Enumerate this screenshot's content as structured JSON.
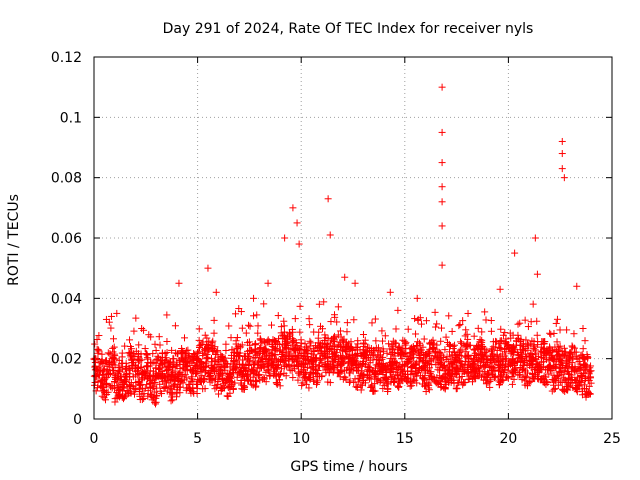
{
  "chart_data": {
    "type": "scatter",
    "title": "Day 291 of 2024, Rate Of TEC Index for receiver nyls",
    "xlabel": "GPS time / hours",
    "ylabel": "ROTI / TECUs",
    "xlim": [
      0,
      25
    ],
    "ylim": [
      0,
      0.12
    ],
    "xticks": [
      "0",
      "5",
      "10",
      "15",
      "20",
      "25"
    ],
    "yticks": [
      "0",
      "0.02",
      "0.04",
      "0.06",
      "0.08",
      "0.1",
      "0.12"
    ],
    "grid": true,
    "marker": "plus",
    "color": "#ff0000",
    "series": [
      {
        "x": [
          0.1,
          0.3,
          0.5,
          0.7,
          0.9,
          1.1,
          1.3,
          1.5,
          1.7,
          1.9,
          2.1,
          2.3,
          2.5,
          2.7,
          2.9,
          3.1,
          3.3,
          3.5,
          3.7,
          3.9,
          4.1,
          4.3,
          4.5,
          4.7,
          4.9,
          5.1,
          5.3,
          5.5,
          5.7,
          5.9,
          6.1,
          6.3,
          6.5,
          6.7,
          6.9,
          7.1,
          7.3,
          7.5,
          7.7,
          7.9,
          8.1,
          8.3,
          8.5,
          8.7,
          8.9,
          9.1,
          9.3,
          9.5,
          9.7,
          9.9,
          10.1,
          10.3,
          10.5,
          10.7,
          10.9,
          11.1,
          11.3,
          11.5,
          11.7,
          11.9,
          12.1,
          12.3,
          12.5,
          12.7,
          12.9,
          13.1,
          13.3,
          13.5,
          13.7,
          13.9,
          14.1,
          14.3,
          14.5,
          14.7,
          14.9,
          15.1,
          15.3,
          15.5,
          15.7,
          15.9,
          16.1,
          16.3,
          16.5,
          16.7,
          16.9,
          17.1,
          17.3,
          17.5,
          17.7,
          17.9,
          18.1,
          18.3,
          18.5,
          18.7,
          18.9,
          19.1,
          19.3,
          19.5,
          19.7,
          19.9,
          20.1,
          20.3,
          20.5,
          20.7,
          20.9,
          21.1,
          21.3,
          21.5,
          21.7,
          21.9,
          22.1,
          22.3,
          22.5,
          22.7,
          22.9,
          23.1,
          23.3,
          23.5,
          23.7,
          23.9,
          0.6,
          1.1,
          2.3,
          4.1,
          5.5,
          5.9,
          7.7,
          8.4,
          9.2,
          9.6,
          9.8,
          9.9,
          11.3,
          11.4,
          12.1,
          12.6,
          14.3,
          15.6,
          16.8,
          16.8,
          16.8,
          16.8,
          16.8,
          16.8,
          16.8,
          19.6,
          20.3,
          21.3,
          21.4,
          22.6,
          22.6,
          22.6,
          22.7,
          23.3,
          23.6
        ],
        "y": [
          0.014,
          0.016,
          0.013,
          0.015,
          0.017,
          0.012,
          0.014,
          0.013,
          0.015,
          0.014,
          0.016,
          0.013,
          0.015,
          0.014,
          0.012,
          0.014,
          0.015,
          0.016,
          0.013,
          0.014,
          0.015,
          0.017,
          0.016,
          0.014,
          0.015,
          0.018,
          0.017,
          0.02,
          0.019,
          0.016,
          0.015,
          0.017,
          0.014,
          0.016,
          0.018,
          0.017,
          0.016,
          0.019,
          0.018,
          0.017,
          0.02,
          0.019,
          0.021,
          0.02,
          0.018,
          0.022,
          0.021,
          0.023,
          0.02,
          0.019,
          0.018,
          0.017,
          0.019,
          0.018,
          0.02,
          0.021,
          0.019,
          0.02,
          0.022,
          0.021,
          0.02,
          0.019,
          0.018,
          0.017,
          0.016,
          0.018,
          0.017,
          0.016,
          0.018,
          0.017,
          0.016,
          0.018,
          0.019,
          0.017,
          0.018,
          0.019,
          0.017,
          0.018,
          0.019,
          0.017,
          0.016,
          0.02,
          0.018,
          0.017,
          0.016,
          0.019,
          0.018,
          0.017,
          0.019,
          0.018,
          0.02,
          0.018,
          0.019,
          0.02,
          0.018,
          0.017,
          0.02,
          0.018,
          0.019,
          0.02,
          0.018,
          0.019,
          0.021,
          0.02,
          0.018,
          0.019,
          0.02,
          0.018,
          0.019,
          0.017,
          0.016,
          0.017,
          0.018,
          0.016,
          0.015,
          0.017,
          0.016,
          0.015,
          0.014,
          0.015,
          0.033,
          0.035,
          0.03,
          0.045,
          0.05,
          0.042,
          0.04,
          0.045,
          0.06,
          0.07,
          0.065,
          0.058,
          0.073,
          0.061,
          0.047,
          0.045,
          0.042,
          0.04,
          0.11,
          0.095,
          0.085,
          0.077,
          0.072,
          0.064,
          0.051,
          0.043,
          0.055,
          0.06,
          0.048,
          0.092,
          0.088,
          0.083,
          0.08,
          0.044,
          0.03
        ]
      }
    ]
  }
}
